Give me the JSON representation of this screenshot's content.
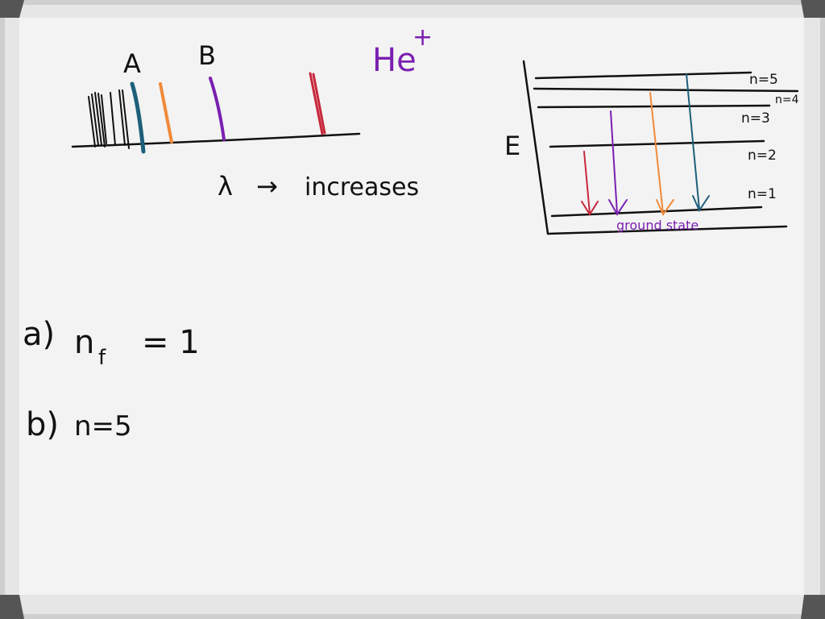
{
  "colors": {
    "board": "#f3f3f3",
    "frame": "#cfcfcf",
    "black": "#111111",
    "teal": "#1d5f7a",
    "orange": "#f08a3a",
    "purple": "#7a1fb0",
    "red": "#c8283c"
  },
  "spectrum": {
    "label_a": "A",
    "label_b": "B",
    "ion": "He",
    "ion_charge": "+",
    "axis_symbol": "λ",
    "axis_arrow": "→",
    "axis_text": "increases"
  },
  "levels": {
    "axis_label": "E",
    "n5": "n=5",
    "n4": "n=4",
    "n3": "n=3",
    "n2": "n=2",
    "n1": "n=1",
    "ground_label": "ground state"
  },
  "answers": {
    "a_label": "a)",
    "a_var": "n",
    "a_sub": "f",
    "a_eq": "= 1",
    "b_label": "b)",
    "b_text": "n=5"
  }
}
